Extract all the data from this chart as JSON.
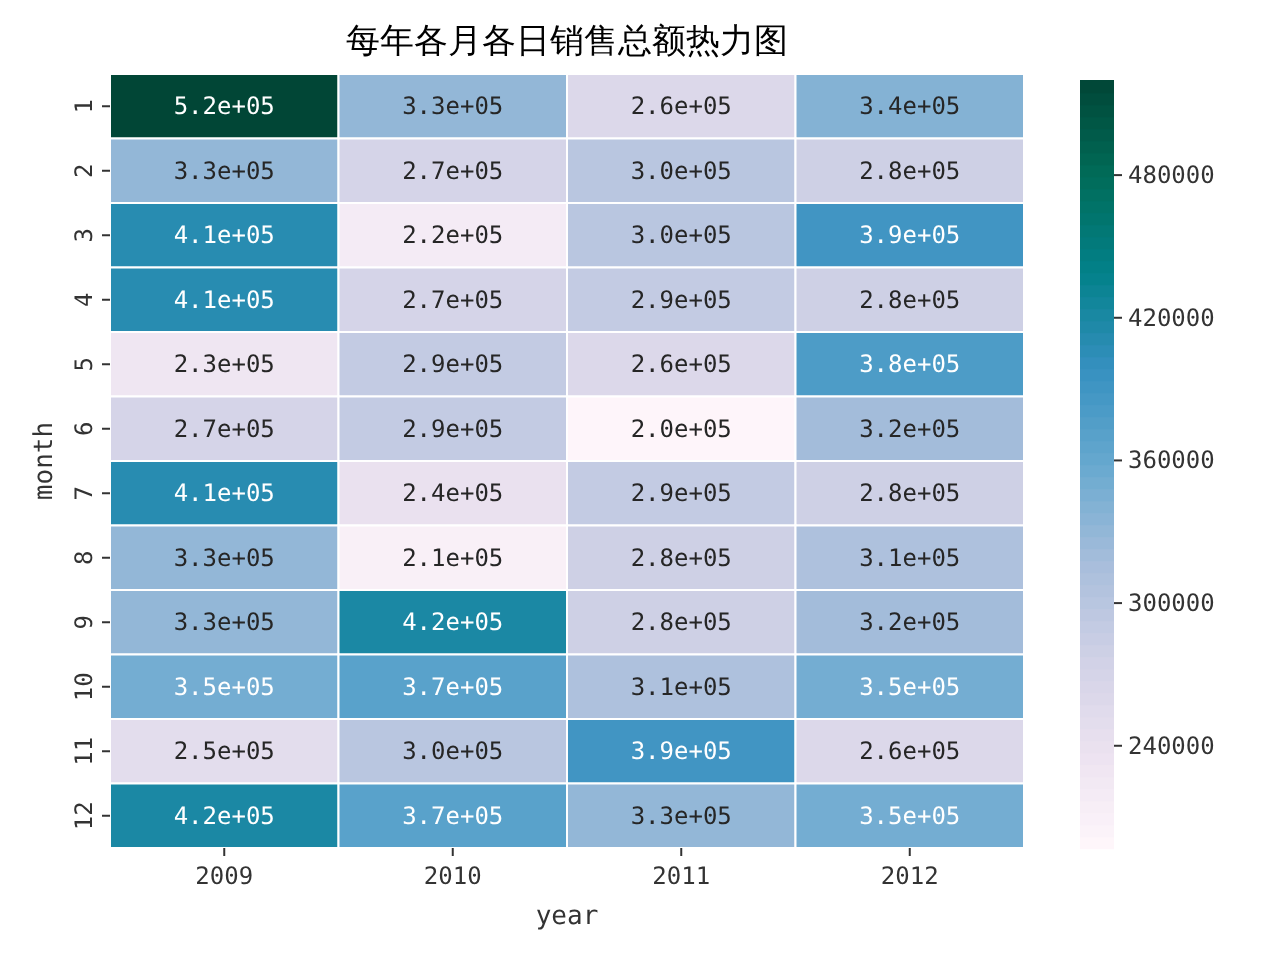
{
  "chart_data": {
    "type": "heatmap",
    "title": "每年各月各日销售总额热力图",
    "xlabel": "year",
    "ylabel": "month",
    "categories": [
      "2009",
      "2010",
      "2011",
      "2012"
    ],
    "y_categories": [
      "1",
      "2",
      "3",
      "4",
      "5",
      "6",
      "7",
      "8",
      "9",
      "10",
      "11",
      "12"
    ],
    "cells": [
      [
        520000,
        330000,
        260000,
        340000
      ],
      [
        330000,
        270000,
        300000,
        280000
      ],
      [
        410000,
        220000,
        300000,
        390000
      ],
      [
        410000,
        270000,
        290000,
        280000
      ],
      [
        230000,
        290000,
        260000,
        380000
      ],
      [
        270000,
        290000,
        200000,
        320000
      ],
      [
        410000,
        240000,
        290000,
        280000
      ],
      [
        330000,
        210000,
        280000,
        310000
      ],
      [
        330000,
        420000,
        280000,
        320000
      ],
      [
        350000,
        370000,
        310000,
        350000
      ],
      [
        250000,
        300000,
        390000,
        260000
      ],
      [
        420000,
        370000,
        330000,
        350000
      ]
    ],
    "cell_labels": [
      [
        "5.2e+05",
        "3.3e+05",
        "2.6e+05",
        "3.4e+05"
      ],
      [
        "3.3e+05",
        "2.7e+05",
        "3.0e+05",
        "2.8e+05"
      ],
      [
        "4.1e+05",
        "2.2e+05",
        "3.0e+05",
        "3.9e+05"
      ],
      [
        "4.1e+05",
        "2.7e+05",
        "2.9e+05",
        "2.8e+05"
      ],
      [
        "2.3e+05",
        "2.9e+05",
        "2.6e+05",
        "3.8e+05"
      ],
      [
        "2.7e+05",
        "2.9e+05",
        "2.0e+05",
        "3.2e+05"
      ],
      [
        "4.1e+05",
        "2.4e+05",
        "2.9e+05",
        "2.8e+05"
      ],
      [
        "3.3e+05",
        "2.1e+05",
        "2.8e+05",
        "3.1e+05"
      ],
      [
        "3.3e+05",
        "4.2e+05",
        "2.8e+05",
        "3.2e+05"
      ],
      [
        "3.5e+05",
        "3.7e+05",
        "3.1e+05",
        "3.5e+05"
      ],
      [
        "2.5e+05",
        "3.0e+05",
        "3.9e+05",
        "2.6e+05"
      ],
      [
        "4.2e+05",
        "3.7e+05",
        "3.3e+05",
        "3.5e+05"
      ]
    ],
    "clim": [
      197000,
      520000
    ],
    "cticks": [
      240000,
      300000,
      360000,
      420000,
      480000
    ]
  }
}
